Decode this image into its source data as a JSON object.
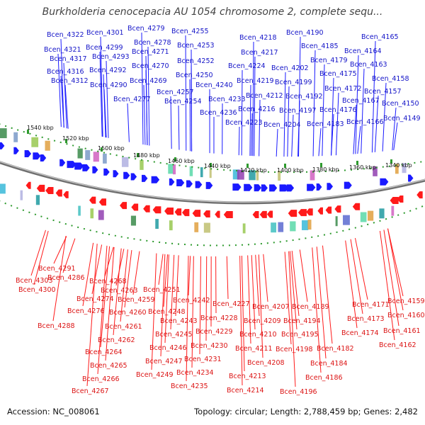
{
  "title": "Burkholderia cenocepacia AU 1054 chromosome 2, complete sequ...",
  "footer": {
    "accession": "Accession: NC_008061",
    "summary": "Topology: circular; Length: 2,788,459 bp; Genes: 2,482"
  },
  "colors": {
    "forward_strand": "#1a1aff",
    "reverse_strand": "#ff1a1a",
    "top_label": "#1414c8",
    "bottom_label": "#dc1414",
    "backbone": "#8c8c8c",
    "tick": "#2e9a2e"
  },
  "scale_ticks": [
    "1540 kbp",
    "1520 kbp",
    "1500 kbp",
    "1480 kbp",
    "1460 kbp",
    "1440 kbp",
    "1420 kbp",
    "1400 kbp",
    "1380 kbp",
    "1360 kbp",
    "1340 kbp"
  ],
  "top_labels": [
    "Bcen_4322",
    "Bcen_4321",
    "Bcen_4317",
    "Bcen_4316",
    "Bcen_4312",
    "Bcen_4301",
    "Bcen_4299",
    "Bcen_4293",
    "Bcen_4292",
    "Bcen_4290",
    "Bcen_4279",
    "Bcen_4278",
    "Bcen_4271",
    "Bcen_4270",
    "Bcen_4269",
    "Bcen_4277",
    "Bcen_4255",
    "Bcen_4253",
    "Bcen_4252",
    "Bcen_4250",
    "Bcen_4257",
    "Bcen_4254",
    "Bcen_4240",
    "Bcen_4233",
    "Bcen_4236",
    "Bcen_4218",
    "Bcen_4217",
    "Bcen_4224",
    "Bcen_4219",
    "Bcen_4212",
    "Bcen_4216",
    "Bcen_4223",
    "Bcen_4190",
    "Bcen_4185",
    "Bcen_4202",
    "Bcen_4199",
    "Bcen_4192",
    "Bcen_4197",
    "Bcen_4204",
    "Bcen_4183",
    "Bcen_4179",
    "Bcen_4175",
    "Bcen_4172",
    "Bcen_4176",
    "Bcen_4167",
    "Bcen_4166",
    "Bcen_4165",
    "Bcen_4164",
    "Bcen_4163",
    "Bcen_4158",
    "Bcen_4157",
    "Bcen_4150",
    "Bcen_4149"
  ],
  "bottom_labels": [
    "Bcen_4291",
    "Bcen_4303",
    "Bcen_4286",
    "Bcen_4300",
    "Bcen_4288",
    "Bcen_4268",
    "Bcen_4274",
    "Bcen_4263",
    "Bcen_4276",
    "Bcen_4259",
    "Bcen_4260",
    "Bcen_4261",
    "Bcen_4262",
    "Bcen_4264",
    "Bcen_4265",
    "Bcen_4266",
    "Bcen_4267",
    "Bcen_4251",
    "Bcen_4242",
    "Bcen_4248",
    "Bcen_4243",
    "Bcen_4245",
    "Bcen_4246",
    "Bcen_4247",
    "Bcen_4249",
    "Bcen_4227",
    "Bcen_4228",
    "Bcen_4229",
    "Bcen_4230",
    "Bcen_4231",
    "Bcen_4234",
    "Bcen_4235",
    "Bcen_4207",
    "Bcen_4209",
    "Bcen_4210",
    "Bcen_4211",
    "Bcen_4208",
    "Bcen_4213",
    "Bcen_4214",
    "Bcen_4189",
    "Bcen_4194",
    "Bcen_4195",
    "Bcen_4198",
    "Bcen_4196",
    "Bcen_4182",
    "Bcen_4184",
    "Bcen_4186",
    "Bcen_4171",
    "Bcen_4173",
    "Bcen_4174",
    "Bcen_4159",
    "Bcen_4160",
    "Bcen_4161",
    "Bcen_4162"
  ]
}
